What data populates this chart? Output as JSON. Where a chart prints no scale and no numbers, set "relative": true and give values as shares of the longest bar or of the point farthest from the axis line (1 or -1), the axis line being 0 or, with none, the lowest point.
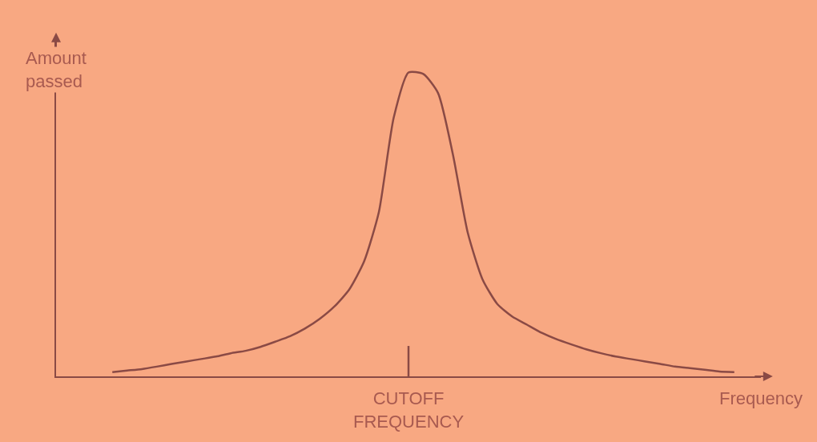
{
  "chart_data": {
    "type": "line",
    "relative": true,
    "xlabel": "Frequency",
    "ylabel": "Amount passed",
    "color": "#8a4a45",
    "annotations": [
      "CUTOFF FREQUENCY"
    ],
    "categories": [
      null,
      null,
      null,
      null,
      null,
      null,
      null,
      null,
      null,
      null,
      null,
      null,
      null,
      null,
      null,
      null,
      null,
      null,
      null,
      null,
      null,
      null,
      null,
      null,
      null,
      null,
      null,
      null,
      null,
      null,
      null,
      null,
      null,
      null,
      null,
      null,
      null,
      null,
      null,
      null,
      null,
      null,
      null
    ],
    "values": [
      0.014,
      0.019,
      0.024,
      0.032,
      0.041,
      0.049,
      0.057,
      0.065,
      0.076,
      0.084,
      0.097,
      0.114,
      0.132,
      0.157,
      0.189,
      0.23,
      0.286,
      0.378,
      0.541,
      0.851,
      1,
      0.995,
      0.932,
      0.73,
      0.473,
      0.319,
      0.238,
      0.197,
      0.17,
      0.143,
      0.122,
      0.105,
      0.089,
      0.076,
      0.065,
      0.057,
      0.049,
      0.041,
      0.032,
      0.027,
      0.022,
      0.016,
      0.014
    ],
    "grid": false,
    "legend": false,
    "marker": "none",
    "line_style": "solid"
  }
}
